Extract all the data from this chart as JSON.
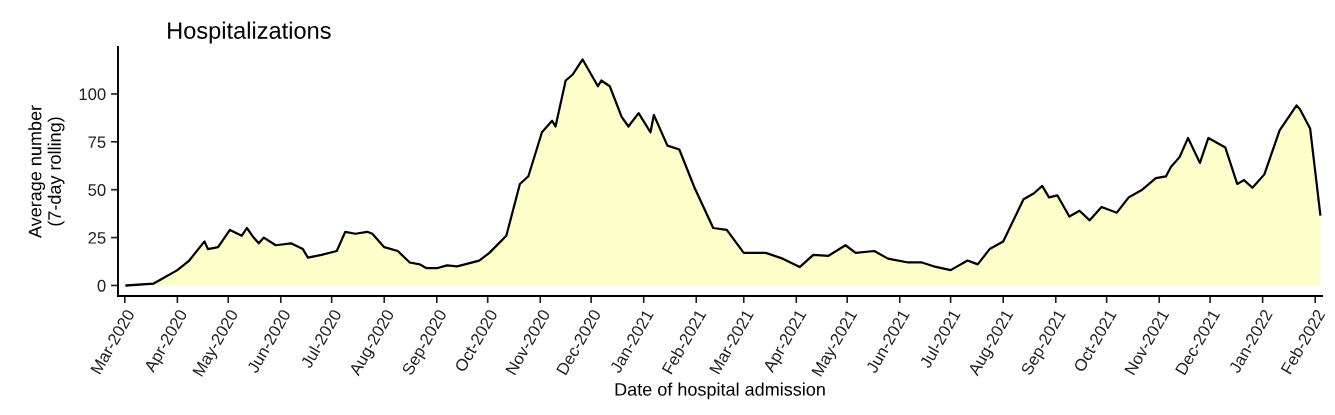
{
  "chart_data": {
    "type": "area",
    "title": "Hospitalizations",
    "xlabel": "Date of hospital admission",
    "ylabel": "Average number\n(7-day rolling)",
    "x": [
      "2020-03-02",
      "2020-03-18",
      "2020-03-22",
      "2020-04-01",
      "2020-04-08",
      "2020-04-17",
      "2020-04-19",
      "2020-04-25",
      "2020-05-02",
      "2020-05-09",
      "2020-05-12",
      "2020-05-16",
      "2020-05-19",
      "2020-05-22",
      "2020-05-29",
      "2020-06-07",
      "2020-06-14",
      "2020-06-17",
      "2020-06-25",
      "2020-07-04",
      "2020-07-09",
      "2020-07-15",
      "2020-07-22",
      "2020-07-25",
      "2020-08-01",
      "2020-08-09",
      "2020-08-16",
      "2020-08-22",
      "2020-08-26",
      "2020-09-01",
      "2020-09-07",
      "2020-09-13",
      "2020-09-26",
      "2020-10-02",
      "2020-10-12",
      "2020-10-20",
      "2020-10-25",
      "2020-11-02",
      "2020-11-08",
      "2020-11-10",
      "2020-11-16",
      "2020-11-20",
      "2020-11-26",
      "2020-12-05",
      "2020-12-07",
      "2020-12-12",
      "2020-12-19",
      "2020-12-23",
      "2020-12-29",
      "2021-01-05",
      "2021-01-07",
      "2021-01-15",
      "2021-01-22",
      "2021-01-31",
      "2021-02-11",
      "2021-02-19",
      "2021-03-01",
      "2021-03-14",
      "2021-03-24",
      "2021-04-03",
      "2021-04-11",
      "2021-04-20",
      "2021-04-30",
      "2021-05-06",
      "2021-05-17",
      "2021-05-25",
      "2021-06-06",
      "2021-06-14",
      "2021-06-21",
      "2021-07-01",
      "2021-07-11",
      "2021-07-17",
      "2021-07-24",
      "2021-08-01",
      "2021-08-13",
      "2021-08-19",
      "2021-08-24",
      "2021-08-28",
      "2021-09-02",
      "2021-09-09",
      "2021-09-15",
      "2021-09-21",
      "2021-09-28",
      "2021-10-07",
      "2021-10-14",
      "2021-10-22",
      "2021-10-30",
      "2021-11-05",
      "2021-11-08",
      "2021-11-13",
      "2021-11-18",
      "2021-11-25",
      "2021-11-30",
      "2021-12-10",
      "2021-12-17",
      "2021-12-21",
      "2021-12-26",
      "2022-01-02",
      "2022-01-11",
      "2022-01-21",
      "2022-01-23",
      "2022-01-29",
      "2022-02-04"
    ],
    "series": [
      {
        "color": "#ffffcc",
        "values": [
          0,
          1,
          3,
          8,
          13,
          23,
          19,
          20,
          29,
          26,
          30,
          25,
          22,
          25,
          21,
          22,
          19,
          14.5,
          16,
          18,
          28,
          27,
          28,
          27,
          20,
          18,
          12,
          11,
          9,
          9,
          10.5,
          10,
          13,
          17,
          26,
          53,
          57,
          80,
          86,
          83,
          107,
          110,
          118,
          104,
          107,
          104,
          88,
          83,
          90,
          80,
          89,
          73,
          71,
          51,
          30,
          29,
          17,
          17,
          14,
          9.6,
          16,
          15.5,
          21,
          17,
          18,
          14,
          12,
          12,
          10,
          8,
          13,
          11,
          19,
          23,
          45,
          48,
          52,
          46,
          47,
          36,
          39,
          34,
          41,
          38,
          46,
          50,
          56,
          57,
          62,
          67,
          77,
          64,
          77,
          72,
          53,
          55,
          51,
          58,
          81,
          94,
          92,
          82,
          37
        ]
      }
    ],
    "xlim": [
      "2020-02-26",
      "2022-02-05"
    ],
    "ylim": [
      -5.5,
      124.5
    ],
    "yticks": [
      0,
      25,
      50,
      75,
      100
    ],
    "xticks": [
      {
        "value": "2020-03-01",
        "label": "Mar-2020"
      },
      {
        "value": "2020-04-01",
        "label": "Apr-2020"
      },
      {
        "value": "2020-05-01",
        "label": "May-2020"
      },
      {
        "value": "2020-06-01",
        "label": "Jun-2020"
      },
      {
        "value": "2020-07-01",
        "label": "Jul-2020"
      },
      {
        "value": "2020-08-01",
        "label": "Aug-2020"
      },
      {
        "value": "2020-09-01",
        "label": "Sep-2020"
      },
      {
        "value": "2020-10-01",
        "label": "Oct-2020"
      },
      {
        "value": "2020-11-01",
        "label": "Nov-2020"
      },
      {
        "value": "2020-12-01",
        "label": "Dec-2020"
      },
      {
        "value": "2021-01-01",
        "label": "Jan-2021"
      },
      {
        "value": "2021-02-01",
        "label": "Feb-2021"
      },
      {
        "value": "2021-03-01",
        "label": "Mar-2021"
      },
      {
        "value": "2021-04-01",
        "label": "Apr-2021"
      },
      {
        "value": "2021-05-01",
        "label": "May-2021"
      },
      {
        "value": "2021-06-01",
        "label": "Jun-2021"
      },
      {
        "value": "2021-07-01",
        "label": "Jul-2021"
      },
      {
        "value": "2021-08-01",
        "label": "Aug-2021"
      },
      {
        "value": "2021-09-01",
        "label": "Sep-2021"
      },
      {
        "value": "2021-10-01",
        "label": "Oct-2021"
      },
      {
        "value": "2021-11-01",
        "label": "Nov-2021"
      },
      {
        "value": "2021-12-01",
        "label": "Dec-2021"
      },
      {
        "value": "2022-01-01",
        "label": "Jan-2022"
      },
      {
        "value": "2022-02-01",
        "label": "Feb-2022"
      }
    ],
    "grid": false,
    "legend": false
  }
}
